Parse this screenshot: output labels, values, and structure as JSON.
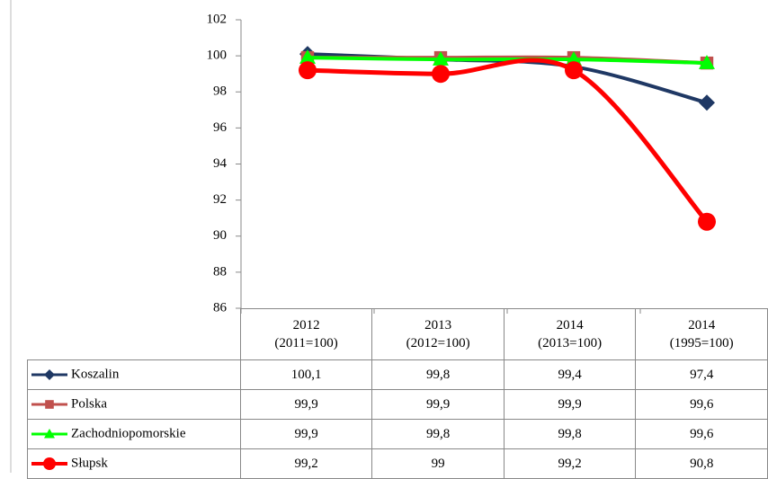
{
  "chart_data": {
    "type": "line",
    "categories": [
      "2012\n(2011=100)",
      "2013\n(2012=100)",
      "2014\n(2013=100)",
      "2014\n(1995=100)"
    ],
    "series": [
      {
        "name": "Koszalin",
        "color": "#1f3864",
        "marker": "diamond",
        "values": [
          100.1,
          99.8,
          99.4,
          97.4
        ],
        "value_labels": [
          "100,1",
          "99,8",
          "99,4",
          "97,4"
        ]
      },
      {
        "name": "Polska",
        "color": "#c0504d",
        "marker": "square",
        "values": [
          99.9,
          99.9,
          99.9,
          99.6
        ],
        "value_labels": [
          "99,9",
          "99,9",
          "99,9",
          "99,6"
        ]
      },
      {
        "name": "Zachodniopomorskie",
        "color": "#00ff00",
        "marker": "triangle",
        "values": [
          99.9,
          99.8,
          99.8,
          99.6
        ],
        "value_labels": [
          "99,9",
          "99,8",
          "99,8",
          "99,6"
        ]
      },
      {
        "name": "Słupsk",
        "color": "#ff0000",
        "marker": "circle",
        "values": [
          99.2,
          99,
          99.2,
          90.8
        ],
        "value_labels": [
          "99,2",
          "99",
          "99,2",
          "90,8"
        ]
      }
    ],
    "ylim": [
      86,
      102
    ],
    "yticks": [
      86,
      88,
      90,
      92,
      94,
      96,
      98,
      100,
      102
    ],
    "smooth": true
  }
}
